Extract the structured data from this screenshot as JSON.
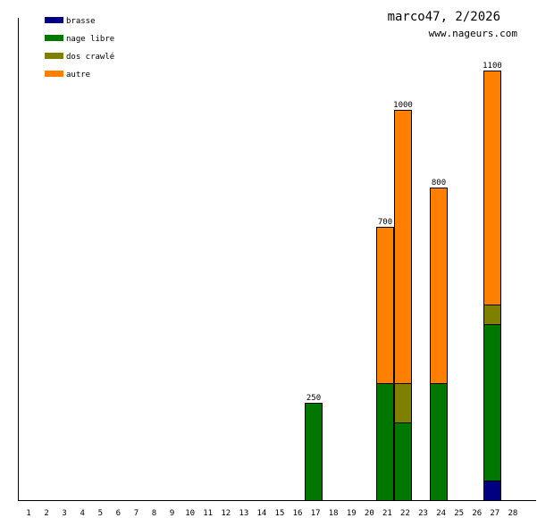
{
  "chart_data": {
    "type": "bar",
    "stacked": true,
    "title": "marco47, 2/2026",
    "subtitle": "www.nageurs.com",
    "xlabel": "",
    "ylabel": "",
    "categories": [
      "1",
      "2",
      "3",
      "4",
      "5",
      "6",
      "7",
      "8",
      "9",
      "10",
      "11",
      "12",
      "13",
      "14",
      "15",
      "16",
      "17",
      "18",
      "19",
      "20",
      "21",
      "22",
      "23",
      "24",
      "25",
      "26",
      "27",
      "28"
    ],
    "ylim": [
      0,
      1100
    ],
    "legend_position": "top-left",
    "series": [
      {
        "name": "brasse",
        "color": "#000080",
        "values": {
          "27": 50
        }
      },
      {
        "name": "nage libre",
        "color": "#007800",
        "values": {
          "17": 250,
          "21": 300,
          "22": 200,
          "24": 300,
          "27": 400
        }
      },
      {
        "name": "dos crawlé",
        "color": "#7f7f00",
        "values": {
          "22": 100,
          "27": 50
        }
      },
      {
        "name": "autre",
        "color": "#ff8000",
        "values": {
          "21": 400,
          "22": 700,
          "24": 500,
          "27": 600
        }
      }
    ],
    "totals": {
      "17": "250",
      "21": "700",
      "22": "1000",
      "24": "800",
      "27": "1100"
    }
  }
}
